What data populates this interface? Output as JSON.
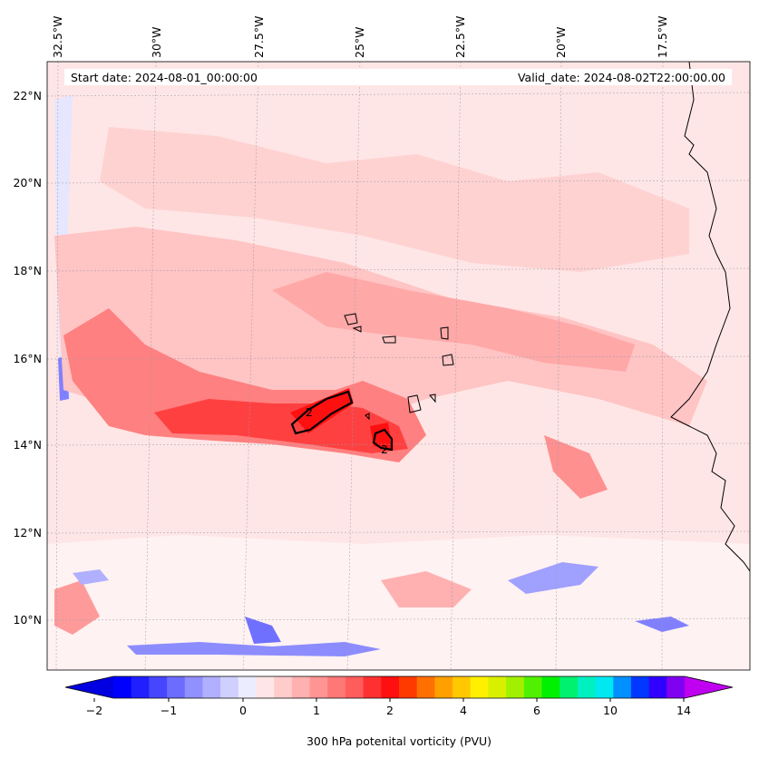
{
  "map": {
    "start_label": "Start date: 2024-08-01_00:00:00",
    "valid_label": "Valid_date: 2024-08-02T22:00:00.00",
    "lon_labels": [
      "32.5°W",
      "30°W",
      "27.5°W",
      "25°W",
      "22.5°W",
      "20°W",
      "17.5°W"
    ],
    "lat_labels": [
      "22°N",
      "20°N",
      "18°N",
      "16°N",
      "14°N",
      "12°N",
      "10°N"
    ],
    "contour_label": "2",
    "variable": "300 hPa potential vorticity",
    "colors": {
      "land_outline": "#000000",
      "contour": "#000000",
      "background_field": "#ffe4e4",
      "positive_max": "#ff0000",
      "negative": "#7070ff"
    }
  },
  "colorbar": {
    "label": "300 hPa potenital vorticity (PVU)",
    "tick_labels": [
      "−2",
      "−1",
      "0",
      "1",
      "2",
      "4",
      "6",
      "10",
      "14"
    ],
    "colors": [
      "#0000ff",
      "#2020ff",
      "#4646ff",
      "#6c6cff",
      "#9090ff",
      "#b0b0ff",
      "#d0d0ff",
      "#ececff",
      "#ffe6e6",
      "#ffcccc",
      "#ffb0b0",
      "#ff9494",
      "#ff7878",
      "#ff5c5c",
      "#ff3030",
      "#ff1010",
      "#ff3a00",
      "#ff7000",
      "#ffa000",
      "#ffc800",
      "#fff000",
      "#d8f000",
      "#a0f000",
      "#50f000",
      "#00f000",
      "#00f070",
      "#00f0c0",
      "#00e8f0",
      "#0090ff",
      "#0038ff",
      "#3000ff",
      "#8000f0"
    ],
    "under_color": "#0000e0",
    "over_color": "#c000f0"
  }
}
